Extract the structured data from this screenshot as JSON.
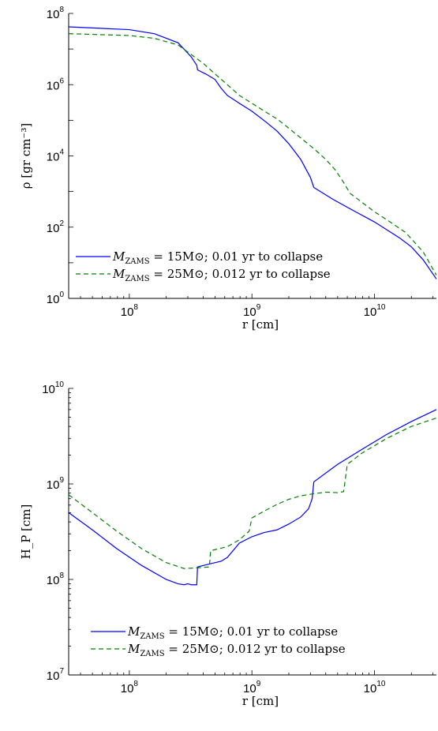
{
  "chart_data": [
    {
      "type": "line",
      "xlabel": "r [cm]",
      "ylabel": "ρ [gr cm⁻³]",
      "xscale": "log",
      "yscale": "log",
      "xlim": [
        32000000.0,
        32000000000.0
      ],
      "ylim": [
        1,
        100000000.0
      ],
      "xticks": [
        {
          "value": 100000000.0,
          "base": "10",
          "exp": "8"
        },
        {
          "value": 1000000000.0,
          "base": "10",
          "exp": "9"
        },
        {
          "value": 10000000000.0,
          "base": "10",
          "exp": "10"
        }
      ],
      "yticks": [
        {
          "value": 1,
          "base": "10",
          "exp": "0"
        },
        {
          "value": 100,
          "base": "10",
          "exp": "2"
        },
        {
          "value": 10000.0,
          "base": "10",
          "exp": "4"
        },
        {
          "value": 1000000.0,
          "base": "10",
          "exp": "6"
        },
        {
          "value": 100000000.0,
          "base": "10",
          "exp": "8"
        }
      ],
      "legend_position": "bottom-left",
      "series": [
        {
          "name": "M_ZAMS = 15M⊙; 0.01 yr to collapse",
          "color": "#0000ff",
          "dash": "solid",
          "points": [
            [
              32000000.0,
              42000000.0
            ],
            [
              100000000.0,
              35000000.0
            ],
            [
              160000000.0,
              27000000.0
            ],
            [
              250000000.0,
              15000000.0
            ],
            [
              320000000.0,
              6000000.0
            ],
            [
              355000000.0,
              3500000.0
            ],
            [
              360000000.0,
              2600000.0
            ],
            [
              420000000.0,
              2000000.0
            ],
            [
              500000000.0,
              1400000.0
            ],
            [
              560000000.0,
              800000.0
            ],
            [
              630000000.0,
              500000.0
            ],
            [
              790000000.0,
              300000.0
            ],
            [
              1000000000.0,
              180000.0
            ],
            [
              1300000000.0,
              90000.0
            ],
            [
              1600000000.0,
              50000.0
            ],
            [
              2000000000.0,
              22000.0
            ],
            [
              2500000000.0,
              8000.0
            ],
            [
              3000000000.0,
              2500.0
            ],
            [
              3200000000.0,
              1300.0
            ],
            [
              4600000000.0,
              600.0
            ],
            [
              6300000000.0,
              330.0
            ],
            [
              10000000000.0,
              140.0
            ],
            [
              16000000000.0,
              50
            ],
            [
              20000000000.0,
              28
            ],
            [
              25000000000.0,
              12
            ],
            [
              32000000000.0,
              3.5
            ]
          ]
        },
        {
          "name": "M_ZAMS = 25M⊙; 0.012 yr to collapse",
          "color": "#008000",
          "dash": "dashed",
          "points": [
            [
              32000000.0,
              27000000.0
            ],
            [
              100000000.0,
              24000000.0
            ],
            [
              160000000.0,
              20000000.0
            ],
            [
              250000000.0,
              13000000.0
            ],
            [
              320000000.0,
              7000000.0
            ],
            [
              400000000.0,
              4000000.0
            ],
            [
              500000000.0,
              2000000.0
            ],
            [
              630000000.0,
              1000000.0
            ],
            [
              790000000.0,
              500000.0
            ],
            [
              1000000000.0,
              300000.0
            ],
            [
              1300000000.0,
              170000.0
            ],
            [
              1600000000.0,
              110000.0
            ],
            [
              2000000000.0,
              60000.0
            ],
            [
              2500000000.0,
              32000.0
            ],
            [
              3200000000.0,
              16000.0
            ],
            [
              4000000000.0,
              8000.0
            ],
            [
              4800000000.0,
              4000.0
            ],
            [
              5600000000.0,
              1800.0
            ],
            [
              6300000000.0,
              900.0
            ],
            [
              7900000000.0,
              500.0
            ],
            [
              10000000000.0,
              270.0
            ],
            [
              13000000000.0,
              150.0
            ],
            [
              18000000000.0,
              70
            ],
            [
              25000000000.0,
              20
            ],
            [
              32000000000.0,
              4.5
            ]
          ]
        }
      ]
    },
    {
      "type": "line",
      "xlabel": "r [cm]",
      "ylabel": "H_P [cm]",
      "xscale": "log",
      "yscale": "log",
      "xlim": [
        32000000.0,
        32000000000.0
      ],
      "ylim": [
        10000000.0,
        10000000000.0
      ],
      "xticks": [
        {
          "value": 100000000.0,
          "base": "10",
          "exp": "8"
        },
        {
          "value": 1000000000.0,
          "base": "10",
          "exp": "9"
        },
        {
          "value": 10000000000.0,
          "base": "10",
          "exp": "10"
        }
      ],
      "yticks": [
        {
          "value": 10000000.0,
          "base": "10",
          "exp": "7"
        },
        {
          "value": 100000000.0,
          "base": "10",
          "exp": "8"
        },
        {
          "value": 1000000000.0,
          "base": "10",
          "exp": "9"
        },
        {
          "value": 10000000000.0,
          "base": "10",
          "exp": "10"
        }
      ],
      "legend_position": "bottom-right",
      "series": [
        {
          "name": "M_ZAMS = 15M⊙; 0.01 yr to collapse",
          "color": "#0000ff",
          "dash": "solid",
          "points": [
            [
              32000000.0,
              500000000.0
            ],
            [
              50000000.0,
              330000000.0
            ],
            [
              79000000.0,
              210000000.0
            ],
            [
              126000000.0,
              140000000.0
            ],
            [
              200000000.0,
              100000000.0
            ],
            [
              250000000.0,
              90000000.0
            ],
            [
              280000000.0,
              88000000.0
            ],
            [
              300000000.0,
              90000000.0
            ],
            [
              320000000.0,
              88000000.0
            ],
            [
              355000000.0,
              88000000.0
            ],
            [
              360000000.0,
              135000000.0
            ],
            [
              450000000.0,
              145000000.0
            ],
            [
              560000000.0,
              155000000.0
            ],
            [
              630000000.0,
              170000000.0
            ],
            [
              790000000.0,
              240000000.0
            ],
            [
              1000000000.0,
              280000000.0
            ],
            [
              1260000000.0,
              310000000.0
            ],
            [
              1600000000.0,
              330000000.0
            ],
            [
              2000000000.0,
              380000000.0
            ],
            [
              2500000000.0,
              450000000.0
            ],
            [
              2900000000.0,
              550000000.0
            ],
            [
              3100000000.0,
              700000000.0
            ],
            [
              3200000000.0,
              1050000000.0
            ],
            [
              5000000000.0,
              1600000000.0
            ],
            [
              7900000000.0,
              2300000000.0
            ],
            [
              12600000000.0,
              3300000000.0
            ],
            [
              20000000000.0,
              4500000000.0
            ],
            [
              32000000000.0,
              6000000000.0
            ]
          ]
        },
        {
          "name": "M_ZAMS = 25M⊙; 0.012 yr to collapse",
          "color": "#008000",
          "dash": "dashed",
          "points": [
            [
              32000000.0,
              770000000.0
            ],
            [
              50000000.0,
              500000000.0
            ],
            [
              79000000.0,
              320000000.0
            ],
            [
              126000000.0,
              210000000.0
            ],
            [
              200000000.0,
              150000000.0
            ],
            [
              280000000.0,
              130000000.0
            ],
            [
              350000000.0,
              132000000.0
            ],
            [
              450000000.0,
              135000000.0
            ],
            [
              460000000.0,
              200000000.0
            ],
            [
              630000000.0,
              220000000.0
            ],
            [
              790000000.0,
              260000000.0
            ],
            [
              950000000.0,
              320000000.0
            ],
            [
              1000000000.0,
              440000000.0
            ],
            [
              1260000000.0,
              520000000.0
            ],
            [
              1600000000.0,
              610000000.0
            ],
            [
              2000000000.0,
              690000000.0
            ],
            [
              2500000000.0,
              750000000.0
            ],
            [
              3200000000.0,
              790000000.0
            ],
            [
              4000000000.0,
              820000000.0
            ],
            [
              5000000000.0,
              810000000.0
            ],
            [
              5600000000.0,
              830000000.0
            ],
            [
              6000000000.0,
              1600000000.0
            ],
            [
              7900000000.0,
              2100000000.0
            ],
            [
              12600000000.0,
              3000000000.0
            ],
            [
              20000000000.0,
              4000000000.0
            ],
            [
              32000000000.0,
              4900000000.0
            ]
          ]
        }
      ]
    }
  ]
}
